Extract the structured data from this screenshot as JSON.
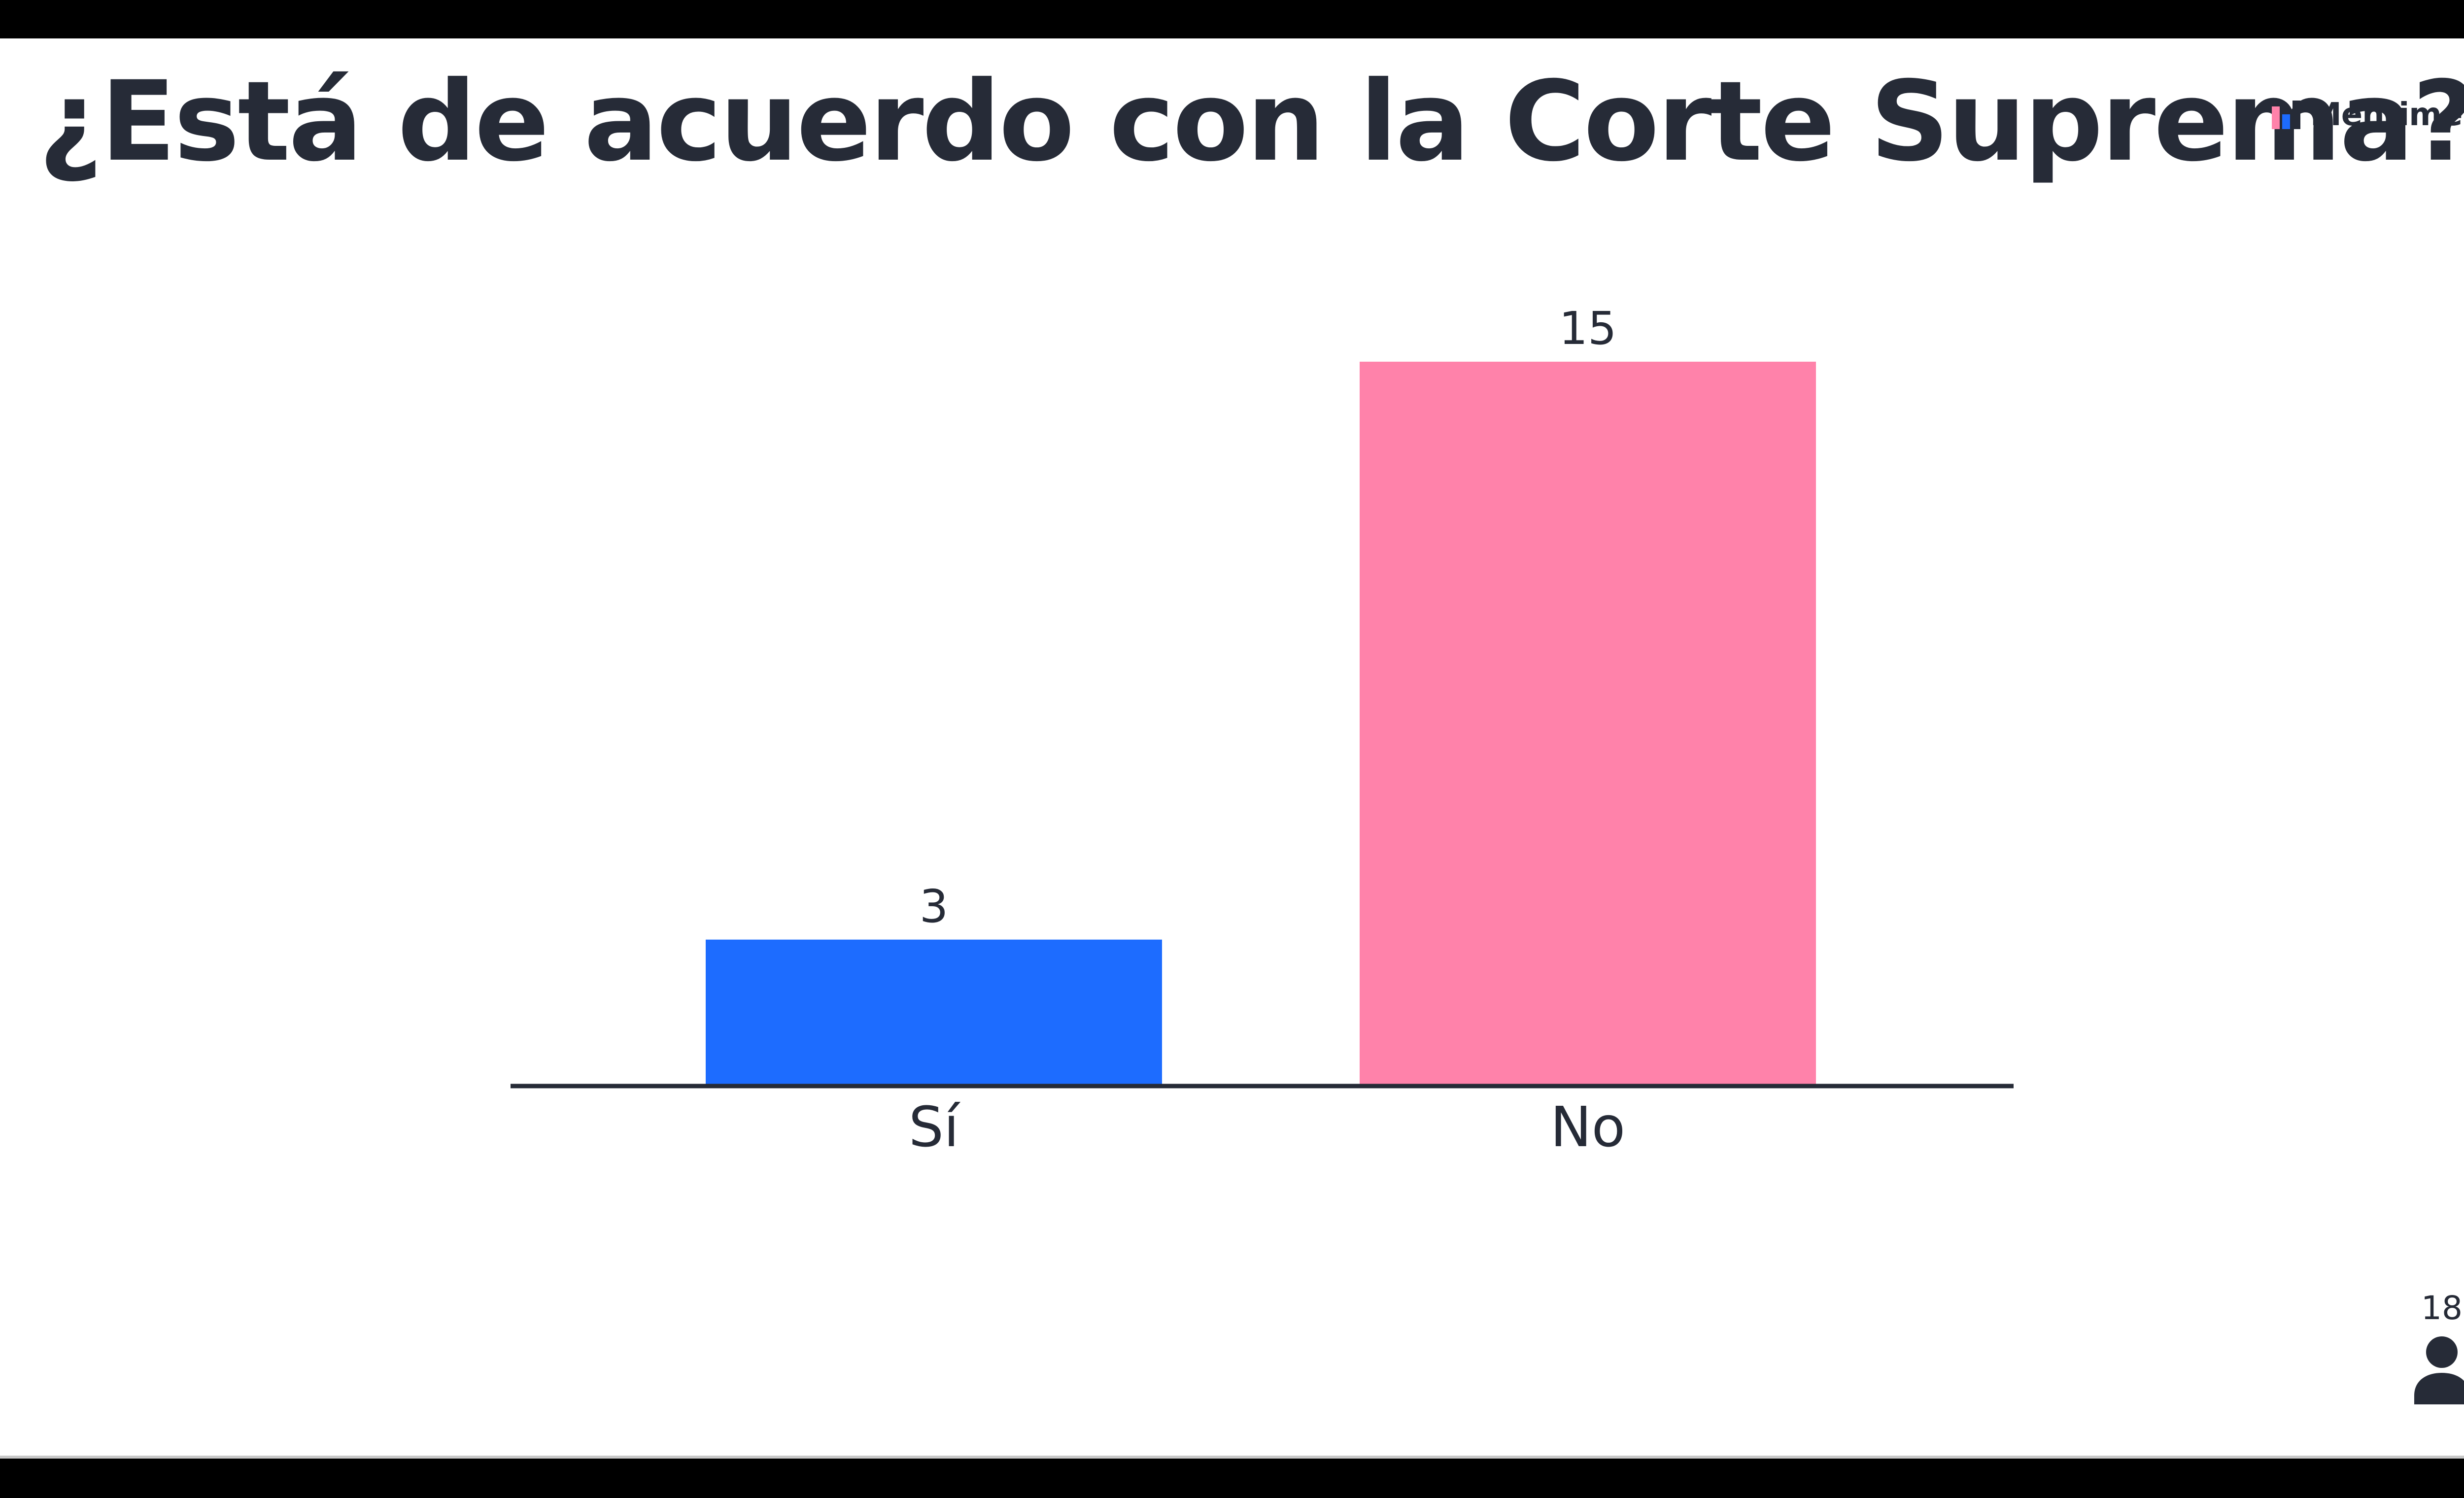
{
  "slide": {
    "title": "¿Está de acuerdo con la Corte Suprema?"
  },
  "brand": {
    "name": "Mentimeter",
    "icon": "mentimeter-logo-icon"
  },
  "participants": {
    "count": "18",
    "icon": "person-icon"
  },
  "colors": {
    "text": "#262b37",
    "bar_si": "#1d6cff",
    "bar_no": "#ff82aa",
    "axis": "#262b37"
  },
  "chart_data": {
    "type": "bar",
    "categories": [
      "Sí",
      "No"
    ],
    "values": [
      3,
      15
    ],
    "colors": [
      "#1d6cff",
      "#ff82aa"
    ],
    "data_labels": [
      "3",
      "15"
    ],
    "title": "¿Está de acuerdo con la Corte Suprema?",
    "xlabel": "",
    "ylabel": "",
    "ylim": [
      0,
      15
    ],
    "grid": false,
    "legend": "none"
  }
}
